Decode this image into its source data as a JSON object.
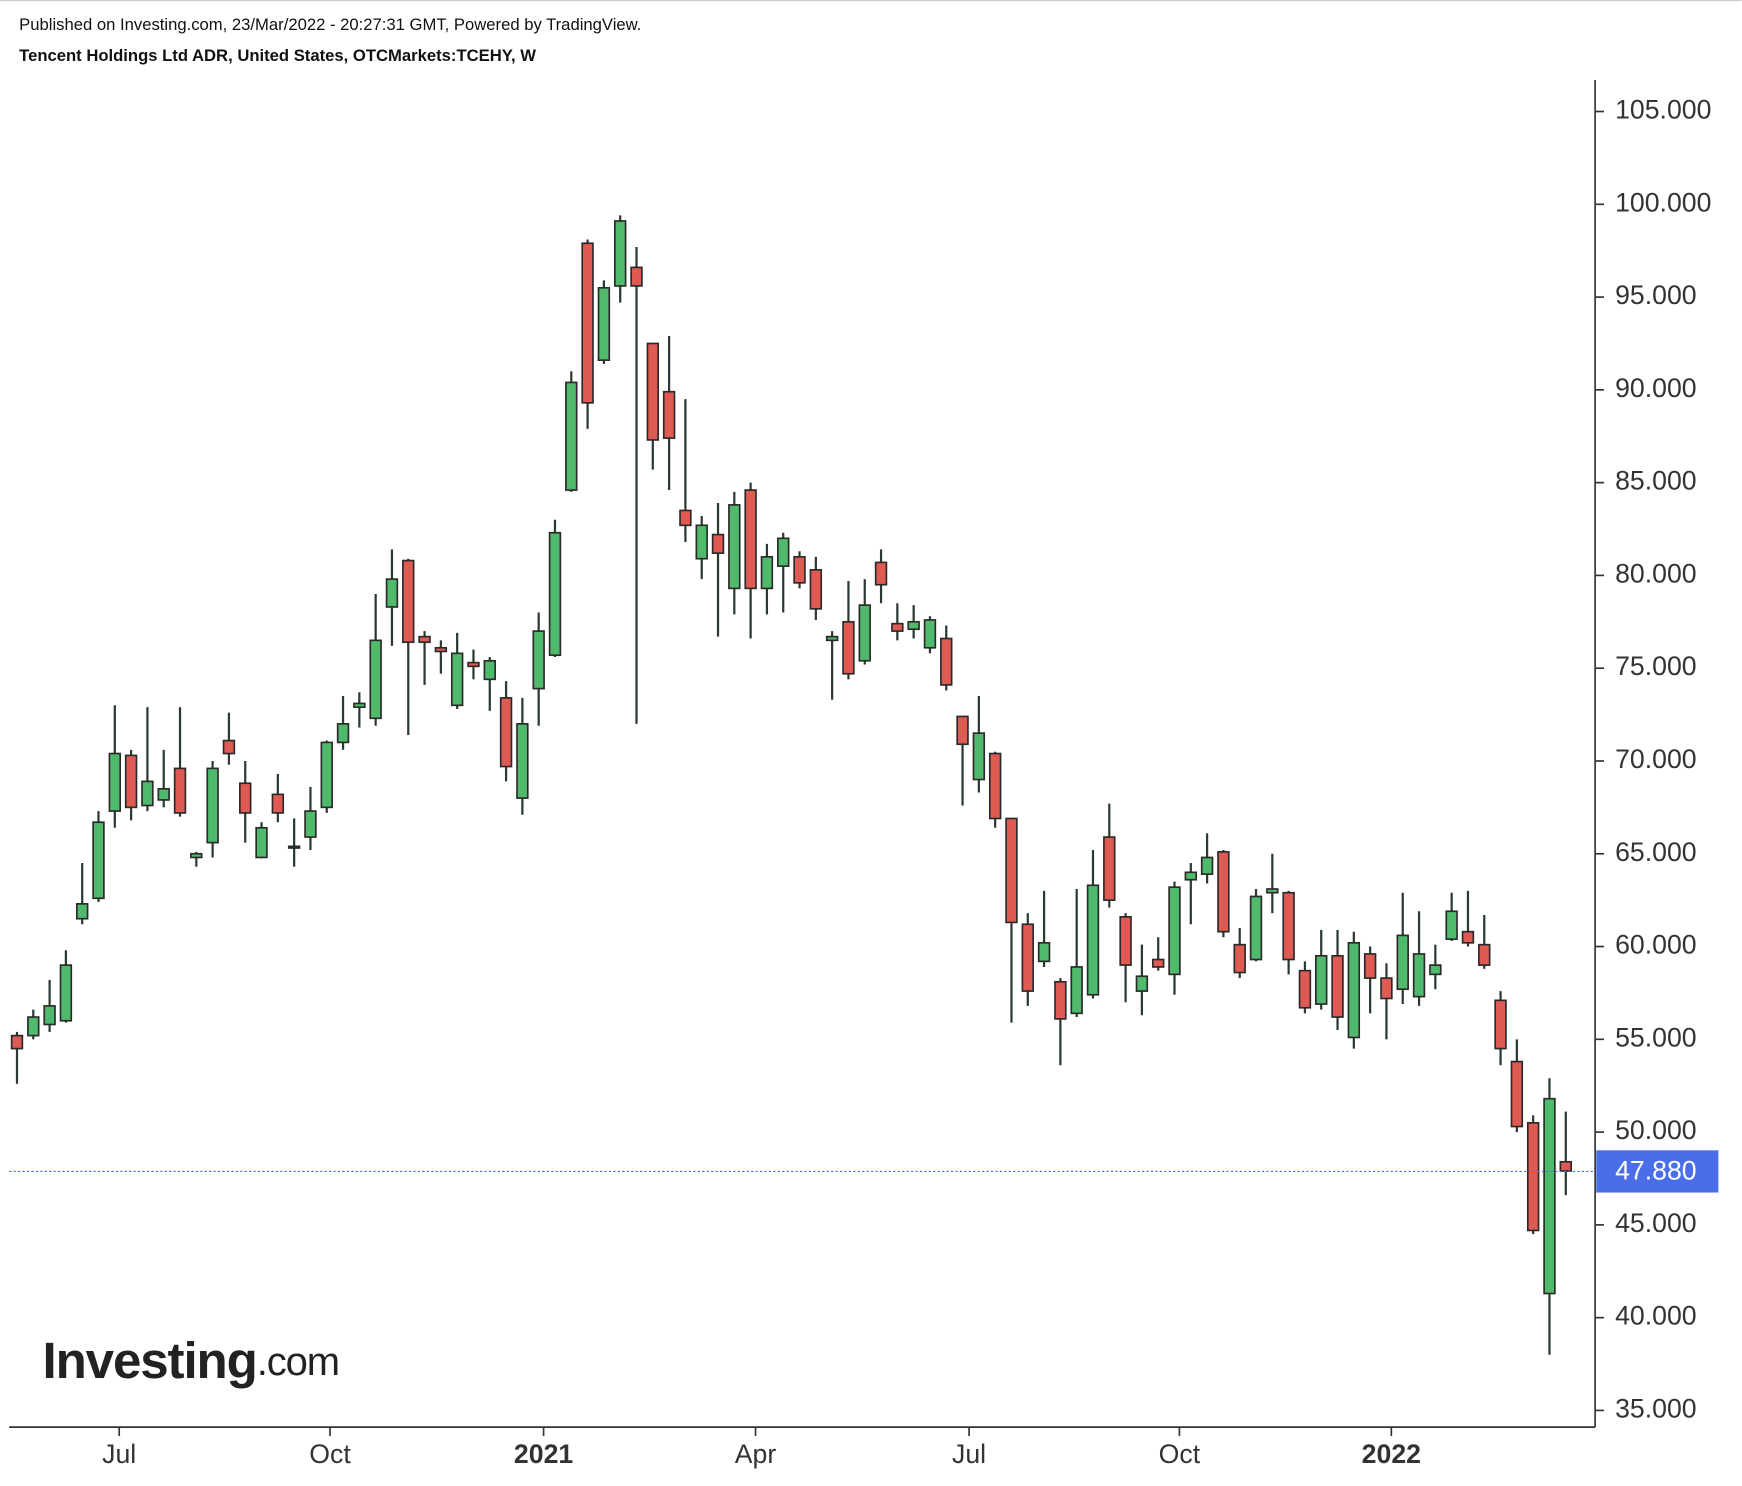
{
  "header": {
    "published": "Published on Investing.com, 23/Mar/2022 - 20:27:31 GMT, Powered by TradingView.",
    "symbol": "Tencent Holdings Ltd ADR, United States, OTCMarkets:TCEHY, W"
  },
  "watermark": "Investing",
  "watermark_suffix": ".com",
  "chart_data": {
    "type": "candlestick",
    "up_color": "#4fb96c",
    "down_color": "#e05a54",
    "open": [
      55.2,
      55.2,
      55.8,
      56.0,
      61.5,
      62.6,
      67.3,
      70.3,
      67.6,
      67.9,
      69.6,
      64.8,
      65.6,
      71.1,
      68.8,
      64.8,
      68.2,
      65.4,
      65.9,
      67.5,
      71.0,
      72.9,
      72.3,
      78.3,
      80.8,
      76.7,
      76.1,
      73.0,
      75.3,
      74.4,
      73.4,
      68.0,
      73.9,
      75.7,
      84.6,
      97.9,
      91.6,
      95.6,
      96.6,
      92.5,
      89.9,
      83.5,
      80.9,
      82.2,
      79.3,
      84.6,
      79.3,
      80.5,
      81.0,
      80.3,
      76.5,
      77.5,
      75.4,
      80.7,
      77.4,
      77.1,
      76.1,
      76.6,
      72.4,
      69.0,
      70.4,
      66.9,
      61.2,
      59.2,
      58.1,
      56.4,
      57.4,
      65.9,
      61.6,
      57.6,
      59.3,
      58.5,
      63.6,
      63.9,
      65.1,
      60.1,
      59.3,
      62.9,
      62.9,
      58.7,
      56.9,
      59.5,
      55.1,
      59.6,
      58.3,
      57.7,
      57.3,
      58.5,
      60.4,
      60.8,
      60.1,
      57.1,
      53.8,
      50.5,
      41.3,
      48.4
    ],
    "high": [
      55.4,
      56.6,
      58.2,
      59.8,
      64.5,
      67.3,
      73.0,
      70.6,
      72.9,
      70.6,
      72.9,
      65.1,
      70.0,
      72.6,
      70.0,
      66.7,
      69.3,
      66.9,
      68.6,
      71.1,
      73.5,
      73.7,
      79.0,
      81.4,
      80.9,
      77.0,
      76.5,
      76.9,
      76.0,
      75.6,
      74.3,
      73.4,
      78.0,
      83.0,
      91.0,
      98.1,
      95.9,
      99.4,
      97.7,
      92.5,
      92.9,
      89.5,
      83.2,
      83.9,
      84.5,
      85.0,
      81.7,
      82.3,
      81.3,
      81.0,
      77.0,
      79.7,
      79.8,
      81.4,
      78.5,
      78.4,
      77.8,
      77.3,
      72.4,
      73.5,
      70.5,
      66.9,
      61.8,
      63.0,
      58.3,
      63.1,
      65.2,
      67.7,
      61.8,
      60.1,
      60.5,
      63.5,
      64.5,
      66.1,
      65.2,
      61.0,
      63.1,
      65.0,
      63.0,
      59.2,
      60.9,
      60.9,
      60.8,
      60.0,
      59.1,
      62.9,
      61.9,
      60.1,
      62.9,
      63.0,
      61.7,
      57.6,
      55.0,
      50.9,
      52.9,
      51.1
    ],
    "low": [
      52.6,
      55.0,
      55.4,
      55.9,
      61.2,
      62.4,
      66.4,
      66.8,
      67.3,
      67.5,
      67.0,
      64.3,
      64.8,
      69.8,
      65.6,
      64.8,
      66.7,
      64.3,
      65.2,
      67.2,
      70.6,
      71.8,
      71.9,
      76.2,
      71.4,
      74.1,
      74.7,
      72.8,
      74.4,
      72.7,
      68.9,
      67.1,
      71.9,
      75.6,
      84.5,
      87.9,
      91.4,
      94.7,
      72.0,
      85.7,
      84.6,
      81.8,
      79.8,
      76.7,
      77.9,
      76.6,
      77.9,
      78.0,
      79.3,
      77.6,
      73.3,
      74.4,
      75.2,
      78.5,
      76.5,
      76.6,
      75.8,
      73.8,
      67.6,
      68.3,
      66.4,
      55.9,
      56.8,
      58.9,
      53.6,
      56.2,
      57.2,
      62.1,
      57.0,
      56.3,
      58.7,
      57.4,
      61.2,
      63.4,
      60.5,
      58.3,
      59.2,
      61.8,
      58.5,
      56.4,
      56.6,
      55.5,
      54.5,
      56.4,
      55.0,
      56.9,
      56.8,
      57.7,
      60.3,
      60.0,
      58.8,
      53.6,
      50.0,
      44.5,
      38.0,
      46.6
    ],
    "close": [
      54.5,
      56.2,
      56.8,
      59.0,
      62.3,
      66.7,
      70.4,
      67.5,
      68.9,
      68.5,
      67.2,
      65.0,
      69.6,
      70.4,
      67.2,
      66.4,
      67.2,
      65.4,
      67.3,
      71.0,
      72.0,
      73.1,
      76.5,
      79.8,
      76.4,
      76.4,
      75.9,
      75.8,
      75.1,
      75.4,
      69.7,
      72.0,
      77.0,
      82.3,
      90.4,
      89.3,
      95.5,
      99.1,
      95.6,
      87.3,
      87.4,
      82.7,
      82.7,
      81.2,
      83.8,
      79.3,
      81.0,
      82.0,
      79.6,
      78.2,
      76.7,
      74.7,
      78.4,
      79.5,
      77.0,
      77.5,
      77.6,
      74.1,
      70.9,
      71.5,
      66.9,
      61.3,
      57.6,
      60.2,
      56.1,
      58.9,
      63.3,
      62.5,
      59.0,
      58.4,
      58.9,
      63.2,
      64.0,
      64.8,
      60.8,
      58.6,
      62.7,
      63.1,
      59.3,
      56.7,
      59.5,
      56.2,
      60.2,
      58.3,
      57.2,
      60.6,
      59.6,
      59.0,
      61.9,
      60.2,
      59.0,
      54.5,
      50.3,
      44.7,
      51.8,
      47.9
    ],
    "xlim": [
      -0.48,
      96.8
    ],
    "xticks": [
      {
        "value": 6.27,
        "label": "Jul"
      },
      {
        "value": 19.2,
        "label": "Oct"
      },
      {
        "value": 32.3,
        "label": "2021"
      },
      {
        "value": 45.3,
        "label": "Apr"
      },
      {
        "value": 58.4,
        "label": "Jul"
      },
      {
        "value": 71.3,
        "label": "Oct"
      },
      {
        "value": 84.3,
        "label": "2022"
      }
    ],
    "ylim": [
      34.1,
      106.7
    ],
    "yticks": [
      {
        "value": 35,
        "label": "35.000"
      },
      {
        "value": 40,
        "label": "40.000"
      },
      {
        "value": 45,
        "label": "45.000"
      },
      {
        "value": 50,
        "label": "50.000"
      },
      {
        "value": 55,
        "label": "55.000"
      },
      {
        "value": 60,
        "label": "60.000"
      },
      {
        "value": 65,
        "label": "65.000"
      },
      {
        "value": 70,
        "label": "70.000"
      },
      {
        "value": 75,
        "label": "75.000"
      },
      {
        "value": 80,
        "label": "80.000"
      },
      {
        "value": 85,
        "label": "85.000"
      },
      {
        "value": 90,
        "label": "90.000"
      },
      {
        "value": 95,
        "label": "95.000"
      },
      {
        "value": 100,
        "label": "100.000"
      },
      {
        "value": 105,
        "label": "105.000"
      }
    ],
    "last_price": {
      "value": 47.88,
      "label": "47.880"
    },
    "last_price_color": "#4a6ee8"
  }
}
